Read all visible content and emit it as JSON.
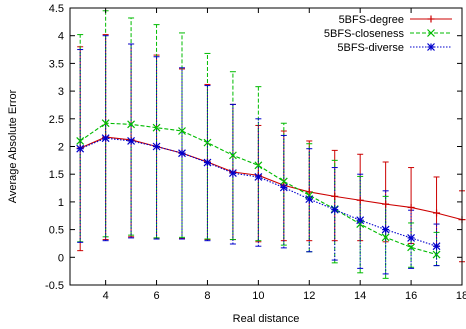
{
  "chart_data": {
    "type": "line",
    "title": "",
    "xlabel": "Real distance",
    "ylabel": "Average Absolute Error",
    "xlim": [
      2.6,
      18
    ],
    "ylim": [
      -0.5,
      4.5
    ],
    "x_ticks": [
      4,
      6,
      8,
      10,
      12,
      14,
      16,
      18
    ],
    "y_ticks": [
      -0.5,
      0,
      0.5,
      1,
      1.5,
      2,
      2.5,
      3,
      3.5,
      4,
      4.5
    ],
    "x_tick_labels": [
      "4",
      "6",
      "8",
      "10",
      "12",
      "14",
      "16",
      "18"
    ],
    "y_tick_labels": [
      "-0.5",
      "0",
      "0.5",
      "1",
      "1.5",
      "2",
      "2.5",
      "3",
      "3.5",
      "4",
      "4.5"
    ],
    "grid": false,
    "legend_position": "top-right",
    "series": [
      {
        "name": "5BFS-degree",
        "color": "#cc0000",
        "marker": "plus",
        "dash": "solid",
        "x": [
          3,
          4,
          5,
          6,
          7,
          8,
          9,
          10,
          11,
          12,
          13,
          14,
          15,
          16,
          17,
          18
        ],
        "y": [
          1.97,
          2.17,
          2.12,
          2.0,
          1.88,
          1.72,
          1.54,
          1.48,
          1.3,
          1.18,
          1.1,
          1.03,
          0.96,
          0.9,
          0.8,
          0.68
        ],
        "lower": [
          0.12,
          0.32,
          0.37,
          0.35,
          0.34,
          0.32,
          0.32,
          0.28,
          0.3,
          0.3,
          0.3,
          0.3,
          0.28,
          0.25,
          0.2,
          -0.08
        ],
        "upper": [
          3.8,
          4.02,
          3.85,
          3.65,
          3.4,
          3.12,
          2.76,
          2.38,
          2.28,
          2.1,
          1.93,
          1.86,
          1.72,
          1.62,
          1.45,
          1.2
        ]
      },
      {
        "name": "5BFS-closeness",
        "color": "#00bb00",
        "marker": "cross",
        "dash": "dashed",
        "x": [
          3,
          4,
          5,
          6,
          7,
          8,
          9,
          10,
          11,
          12,
          13,
          14,
          15,
          16,
          17
        ],
        "y": [
          2.1,
          2.42,
          2.4,
          2.34,
          2.28,
          2.07,
          1.84,
          1.66,
          1.37,
          1.12,
          0.87,
          0.6,
          0.36,
          0.18,
          0.05
        ],
        "lower": [
          0.28,
          0.37,
          0.4,
          0.35,
          0.36,
          0.33,
          0.32,
          0.3,
          0.22,
          0.1,
          -0.1,
          -0.28,
          -0.38,
          -0.18,
          -0.15
        ],
        "upper": [
          4.02,
          4.45,
          4.32,
          4.2,
          4.05,
          3.68,
          3.35,
          3.08,
          2.42,
          2.05,
          1.75,
          1.46,
          1.1,
          0.62,
          0.45
        ]
      },
      {
        "name": "5BFS-diverse",
        "color": "#0000cc",
        "marker": "star",
        "dash": "dotted",
        "x": [
          3,
          4,
          5,
          6,
          7,
          8,
          9,
          10,
          11,
          12,
          13,
          14,
          15,
          16,
          17
        ],
        "y": [
          1.96,
          2.15,
          2.1,
          2.0,
          1.88,
          1.71,
          1.52,
          1.45,
          1.26,
          1.05,
          0.86,
          0.67,
          0.5,
          0.35,
          0.2
        ],
        "lower": [
          0.27,
          0.3,
          0.35,
          0.33,
          0.33,
          0.3,
          0.24,
          0.2,
          0.17,
          0.1,
          -0.05,
          -0.2,
          -0.3,
          -0.2,
          -0.15
        ],
        "upper": [
          3.75,
          4.0,
          3.85,
          3.62,
          3.42,
          3.1,
          2.76,
          2.5,
          2.2,
          1.96,
          1.62,
          1.5,
          1.2,
          0.85,
          0.6
        ]
      }
    ]
  }
}
